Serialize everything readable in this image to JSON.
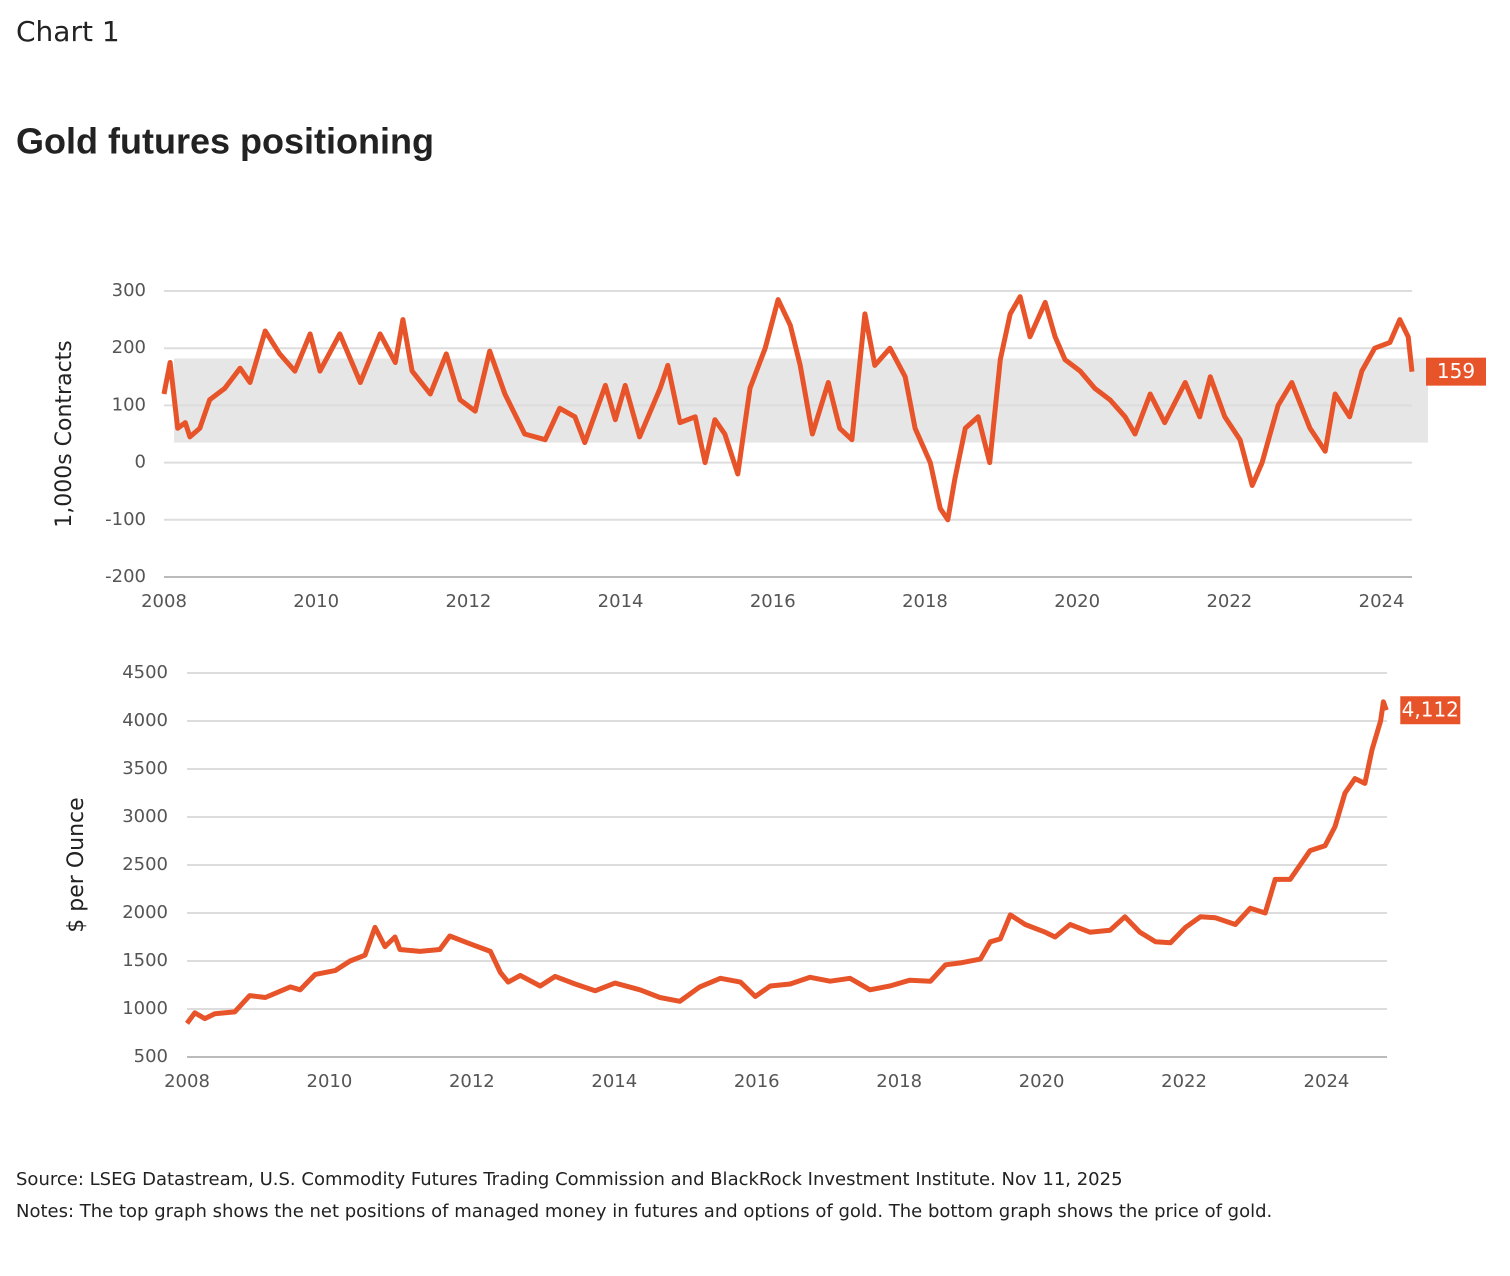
{
  "header": {
    "label": "Chart 1",
    "title": "Gold futures positioning"
  },
  "chart_data": [
    {
      "type": "line",
      "y_label": "1,000s Contracts",
      "xlim": [
        2008,
        2024.4
      ],
      "xticks": [
        2008,
        2010,
        2012,
        2014,
        2016,
        2018,
        2020,
        2022,
        2024
      ],
      "ylim": [
        -200,
        300
      ],
      "yticks": [
        -200,
        -100,
        0,
        100,
        200,
        300
      ],
      "grid": true,
      "band": [
        35,
        182
      ],
      "band_color": "#e6e6e6",
      "end_label": "159",
      "series": [
        {
          "color": "#e8542a",
          "x": [
            2008.0,
            2008.08,
            2008.18,
            2008.28,
            2008.34,
            2008.47,
            2008.6,
            2008.8,
            2009.0,
            2009.13,
            2009.33,
            2009.52,
            2009.72,
            2009.92,
            2010.05,
            2010.31,
            2010.58,
            2010.84,
            2011.04,
            2011.14,
            2011.26,
            2011.5,
            2011.71,
            2011.89,
            2012.09,
            2012.28,
            2012.48,
            2012.74,
            2013.01,
            2013.2,
            2013.4,
            2013.53,
            2013.8,
            2013.93,
            2014.06,
            2014.25,
            2014.52,
            2014.62,
            2014.78,
            2014.98,
            2015.11,
            2015.24,
            2015.37,
            2015.54,
            2015.7,
            2015.9,
            2016.07,
            2016.23,
            2016.36,
            2016.52,
            2016.73,
            2016.88,
            2017.04,
            2017.21,
            2017.34,
            2017.54,
            2017.74,
            2017.87,
            2018.07,
            2018.2,
            2018.3,
            2018.39,
            2018.53,
            2018.7,
            2018.85,
            2018.99,
            2019.12,
            2019.25,
            2019.38,
            2019.58,
            2019.71,
            2019.84,
            2020.04,
            2020.23,
            2020.43,
            2020.63,
            2020.76,
            2020.96,
            2021.15,
            2021.42,
            2021.61,
            2021.75,
            2021.94,
            2022.14,
            2022.3,
            2022.43,
            2022.64,
            2022.82,
            2023.06,
            2023.26,
            2023.39,
            2023.58,
            2023.74,
            2023.91,
            2024.11,
            2024.24,
            2024.35,
            2024.4
          ],
          "values": [
            120,
            175,
            60,
            70,
            45,
            60,
            110,
            130,
            165,
            140,
            230,
            190,
            160,
            225,
            160,
            225,
            140,
            225,
            175,
            250,
            160,
            120,
            190,
            110,
            90,
            195,
            120,
            50,
            40,
            95,
            80,
            35,
            135,
            75,
            135,
            45,
            130,
            170,
            70,
            80,
            0,
            75,
            50,
            -20,
            130,
            200,
            285,
            240,
            170,
            50,
            140,
            60,
            40,
            260,
            170,
            200,
            150,
            60,
            0,
            -80,
            -100,
            -30,
            60,
            80,
            0,
            180,
            260,
            290,
            220,
            280,
            220,
            180,
            160,
            130,
            110,
            80,
            50,
            120,
            70,
            140,
            80,
            150,
            80,
            40,
            -40,
            0,
            100,
            140,
            60,
            20,
            120,
            80,
            160,
            200,
            210,
            250,
            220,
            159
          ]
        }
      ]
    },
    {
      "type": "line",
      "y_label": "$ per Ounce",
      "xlim": [
        2008,
        2024.85
      ],
      "xticks": [
        2008,
        2010,
        2012,
        2014,
        2016,
        2018,
        2020,
        2022,
        2024
      ],
      "ylim": [
        500,
        4500
      ],
      "yticks": [
        500,
        1000,
        1500,
        2000,
        2500,
        3000,
        3500,
        4000,
        4500
      ],
      "grid": true,
      "end_label": "4,112",
      "series": [
        {
          "color": "#e8542a",
          "x": [
            2008.0,
            2008.11,
            2008.25,
            2008.39,
            2008.67,
            2008.88,
            2009.1,
            2009.45,
            2009.59,
            2009.8,
            2010.08,
            2010.29,
            2010.5,
            2010.64,
            2010.78,
            2010.92,
            2010.99,
            2011.27,
            2011.55,
            2011.69,
            2011.97,
            2012.26,
            2012.4,
            2012.51,
            2012.68,
            2012.96,
            2013.17,
            2013.45,
            2013.73,
            2014.01,
            2014.36,
            2014.64,
            2014.92,
            2015.2,
            2015.49,
            2015.77,
            2015.98,
            2016.19,
            2016.47,
            2016.75,
            2017.03,
            2017.31,
            2017.59,
            2017.87,
            2018.15,
            2018.44,
            2018.65,
            2018.86,
            2019.14,
            2019.28,
            2019.42,
            2019.56,
            2019.77,
            2020.05,
            2020.19,
            2020.4,
            2020.68,
            2020.96,
            2021.17,
            2021.38,
            2021.6,
            2021.81,
            2022.02,
            2022.23,
            2022.44,
            2022.72,
            2022.93,
            2023.14,
            2023.28,
            2023.49,
            2023.77,
            2023.98,
            2024.12,
            2024.26,
            2024.4,
            2024.54,
            2024.64,
            2024.76,
            2024.8,
            2024.84
          ],
          "values": [
            850,
            960,
            900,
            950,
            970,
            1140,
            1120,
            1230,
            1200,
            1360,
            1400,
            1500,
            1560,
            1850,
            1650,
            1750,
            1620,
            1600,
            1620,
            1760,
            1680,
            1600,
            1380,
            1280,
            1350,
            1240,
            1340,
            1260,
            1190,
            1270,
            1200,
            1120,
            1080,
            1230,
            1320,
            1280,
            1130,
            1240,
            1260,
            1330,
            1290,
            1320,
            1200,
            1240,
            1300,
            1290,
            1460,
            1480,
            1520,
            1700,
            1730,
            1980,
            1880,
            1800,
            1750,
            1880,
            1800,
            1820,
            1960,
            1800,
            1700,
            1690,
            1850,
            1960,
            1950,
            1880,
            2050,
            2000,
            2350,
            2350,
            2650,
            2700,
            2900,
            3250,
            3400,
            3350,
            3700,
            4000,
            4200,
            4112
          ]
        }
      ]
    }
  ],
  "footer": {
    "source": "Source: LSEG Datastream, U.S. Commodity Futures Trading Commission and BlackRock Investment Institute. Nov 11, 2025",
    "notes": "Notes: The top graph shows the net positions of managed money in futures and options of gold. The bottom graph shows the price of gold."
  }
}
